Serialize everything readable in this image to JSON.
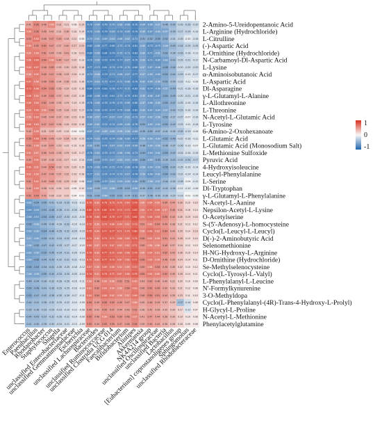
{
  "chart_data": {
    "type": "heatmap",
    "title": "",
    "xlabel": "",
    "ylabel": "",
    "grid": false,
    "legend_position": "right",
    "colorscale": {
      "min": -1,
      "max": 1,
      "ticks": [
        "1",
        "0",
        "-1"
      ],
      "low_color": "#2166ac",
      "mid_color": "#f7f7f7",
      "high_color": "#d7301f"
    },
    "rows": [
      "2-Amino-5-Ureidopentanoic Acid",
      "L-Arginine (Hydrochloride)",
      "L-Citrulline",
      "(-)-Aspartic Acid",
      "L-Ornithine (Hydrochloride)",
      "N-Carbamoyl-Dl-Aspartic Acid",
      "L-Lysine",
      "α-Aminoisobutanoic Acid",
      "L-Aspartic Acid",
      "Dl-Asparagine",
      "γ-L-Glutamyl-L-Alanine",
      "L-Allothreonine",
      "L-Threonine",
      "N-Acetyl-L-Glutamic Acid",
      "L-Tyrosine",
      "6-Amino-2-Oxohexanoate",
      "L-Glutamic Acid",
      "L-Glutamic Acid (Monosodium Salt)",
      "L-Methionine Sulfoxide",
      "Pyruvic Acid",
      "4-Hydroxyisoleucine",
      "Leucyl-Phenylalanine",
      "L-Serine",
      "Dl-Tryptophan",
      "γ-L-Glutamyl-L-Phenylalanine",
      "N-Acetyl-L-Aanine",
      "Nepsilon-Acetyl-L-Lysine",
      "O-Acetylserine",
      "S-(5'-Adenosy)-L-homocysteine",
      "Cyclo(L-Leucyl-L-Leucyl)",
      "D(-)-2-Aminobutyric Acid",
      "Selenomethionine",
      "H-NG-Hydroxy-L-Arginine",
      "D-Ornithine (Hydrochloride)",
      "Se-Methylselenocysteine",
      "Cyclo(L-Tyrosyl-L-Valyl)",
      "L-Phenylalanyl-L-Leucine",
      "N'-Formylkynurenine",
      "3-O-Methyldopa",
      "Cyclo(L-Phenylalanyl-(4R)-Trans-4-Hydroxy-L-Prolyl)",
      "H-Glycyl-L-Proline",
      "N-Acetyl-L-Methionine",
      "Phenylacetylglutamine"
    ],
    "columns": [
      "Enterococcus",
      "Paenibacillus",
      "Rhodanobacter",
      "Staphylococcus",
      "Shigella",
      "unclassified Enterobacteriaceae",
      "unclassified Gemmatimonadaceae",
      "Escherichia",
      "unclassified Lachnospiraceae",
      "Bacteroides",
      "unclassified Ruminococcaceae",
      "unclassified Clostridia UCG 014",
      "Faecalibacterium",
      "Bifidobacterium",
      "Alistipes",
      "Akkermansia",
      "NK4A214 group",
      "unclassified Oscillospiraceae",
      "unclassified Bacteria",
      "Lactobacillus",
      "[Eubacterium] coprostanoligenes group",
      "Sphingomonas",
      "unclassified Rhodobacteraceae"
    ],
    "values": [
      [
        0.41,
        0.55,
        0.46,
        0.56,
        0.31,
        0.21,
        0.08,
        0.19,
        -0.76,
        -0.64,
        -0.76,
        -0.7,
        -0.66,
        -0.68,
        -0.79,
        -0.64,
        -0.66,
        -0.57,
        -0.46,
        -0.42,
        -0.25,
        -0.26,
        -0.2
      ],
      [
        0.6,
        0.55,
        0.45,
        0.41,
        0.31,
        0.36,
        0.18,
        0.14,
        -0.75,
        -0.65,
        -0.79,
        -0.69,
        -0.73,
        -0.69,
        -0.79,
        -0.6,
        -0.67,
        -0.6,
        -0.57,
        -0.39,
        -0.27,
        -0.24,
        -0.16
      ],
      [
        0.53,
        0.63,
        0.46,
        0.47,
        0.43,
        0.34,
        0.21,
        0.05,
        -0.7,
        -0.61,
        -0.69,
        -0.63,
        -0.68,
        -0.62,
        -0.71,
        -0.51,
        -0.52,
        -0.55,
        -0.52,
        -0.31,
        -0.25,
        -0.1,
        -0.16
      ],
      [
        0.59,
        0.52,
        0.54,
        0.47,
        0.37,
        0.4,
        0.27,
        0.24,
        -0.82,
        -0.68,
        -0.77,
        -0.8,
        -0.72,
        -0.73,
        -0.81,
        -0.6,
        -0.73,
        -0.7,
        -0.58,
        -0.45,
        -0.34,
        -0.25,
        -0.25
      ],
      [
        0.6,
        0.6,
        0.51,
        0.44,
        0.36,
        0.41,
        0.18,
        0.21,
        -0.83,
        -0.65,
        -0.84,
        -0.79,
        -0.7,
        -0.71,
        -0.83,
        -0.6,
        -0.71,
        -0.61,
        -0.52,
        -0.38,
        -0.33,
        -0.18,
        -0.13
      ],
      [
        0.66,
        0.69,
        0.54,
        0.56,
        0.44,
        0.37,
        0.22,
        0.13,
        -0.79,
        -0.65,
        -0.79,
        -0.79,
        -0.77,
        -0.67,
        -0.79,
        -0.59,
        -0.71,
        -0.69,
        -0.62,
        -0.43,
        -0.25,
        -0.21,
        -0.17
      ],
      [
        0.64,
        0.67,
        0.48,
        0.5,
        0.33,
        0.3,
        0.25,
        0.18,
        -0.77,
        -0.72,
        -0.81,
        -0.74,
        -0.75,
        -0.7,
        -0.8,
        -0.57,
        -0.67,
        -0.66,
        -0.55,
        -0.46,
        -0.2,
        -0.2,
        -0.2
      ],
      [
        0.56,
        0.62,
        0.49,
        0.47,
        0.38,
        0.33,
        0.24,
        0.13,
        -0.74,
        -0.58,
        -0.79,
        -0.71,
        -0.68,
        -0.67,
        -0.77,
        -0.57,
        -0.63,
        -0.65,
        -0.54,
        -0.44,
        -0.29,
        -0.13,
        -0.17
      ],
      [
        0.67,
        0.59,
        0.48,
        0.5,
        0.34,
        0.36,
        0.2,
        0.16,
        -0.74,
        -0.63,
        -0.73,
        -0.77,
        -0.71,
        -0.68,
        -0.79,
        -0.62,
        -0.65,
        -0.59,
        -0.52,
        -0.39,
        -0.23,
        -0.11,
        -0.08
      ],
      [
        0.73,
        0.66,
        0.54,
        0.53,
        0.35,
        0.29,
        0.2,
        0.16,
        -0.84,
        -0.74,
        -0.83,
        -0.78,
        -0.77,
        -0.72,
        -0.83,
        -0.62,
        -0.74,
        -0.68,
        -0.57,
        -0.49,
        -0.21,
        -0.18,
        -0.16
      ],
      [
        0.68,
        0.61,
        0.49,
        0.53,
        0.37,
        0.3,
        0.22,
        0.16,
        -0.82,
        -0.68,
        -0.78,
        -0.81,
        -0.72,
        -0.75,
        -0.81,
        -0.59,
        -0.66,
        -0.67,
        -0.54,
        -0.49,
        -0.2,
        -0.21,
        -0.18
      ],
      [
        0.66,
        0.63,
        0.52,
        0.45,
        0.35,
        0.29,
        0.19,
        0.15,
        -0.78,
        -0.65,
        -0.78,
        -0.76,
        -0.73,
        -0.69,
        -0.8,
        -0.57,
        -0.66,
        -0.6,
        -0.53,
        -0.47,
        -0.25,
        -0.15,
        -0.18
      ],
      [
        0.63,
        0.66,
        0.56,
        0.5,
        0.35,
        0.33,
        0.23,
        0.17,
        -0.78,
        -0.68,
        -0.79,
        -0.77,
        -0.76,
        -0.69,
        -0.83,
        -0.6,
        -0.67,
        -0.64,
        -0.57,
        -0.43,
        -0.29,
        -0.16,
        -0.16
      ],
      [
        0.56,
        0.63,
        0.45,
        0.44,
        0.37,
        0.3,
        0.23,
        0.18,
        -0.68,
        -0.57,
        -0.75,
        -0.67,
        -0.67,
        -0.61,
        -0.73,
        -0.57,
        -0.62,
        -0.58,
        -0.52,
        -0.37,
        -0.27,
        -0.07,
        -0.16
      ],
      [
        0.65,
        0.63,
        0.47,
        0.47,
        0.36,
        0.26,
        0.24,
        0.18,
        -0.69,
        -0.61,
        -0.74,
        -0.74,
        -0.69,
        -0.65,
        -0.76,
        -0.53,
        -0.62,
        -0.61,
        -0.53,
        -0.43,
        -0.23,
        -0.11,
        -0.16
      ],
      [
        0.43,
        0.59,
        0.31,
        0.32,
        0.22,
        0.19,
        0.04,
        0.03,
        -0.67,
        -0.62,
        -0.59,
        -0.6,
        -0.58,
        -0.56,
        -0.65,
        -0.49,
        -0.51,
        -0.47,
        -0.41,
        -0.36,
        -0.35,
        -0.19,
        -0.08
      ],
      [
        0.55,
        0.65,
        0.48,
        0.45,
        0.29,
        0.34,
        0.18,
        0.15,
        -0.74,
        -0.63,
        -0.75,
        -0.74,
        -0.68,
        -0.69,
        -0.77,
        -0.56,
        -0.6,
        -0.6,
        -0.52,
        -0.46,
        -0.22,
        -0.16,
        -0.11
      ],
      [
        0.52,
        0.58,
        0.39,
        0.47,
        0.29,
        0.22,
        0.15,
        0.16,
        -0.65,
        -0.51,
        -0.74,
        -0.67,
        -0.63,
        -0.64,
        -0.69,
        -0.48,
        -0.6,
        -0.56,
        -0.46,
        -0.37,
        -0.26,
        -0.13,
        -0.07
      ],
      [
        0.61,
        0.57,
        0.46,
        0.43,
        0.36,
        0.29,
        0.2,
        0.17,
        -0.76,
        -0.63,
        -0.75,
        -0.73,
        -0.66,
        -0.66,
        -0.73,
        -0.54,
        -0.64,
        -0.61,
        -0.54,
        -0.44,
        -0.24,
        -0.16,
        -0.15
      ],
      [
        0.49,
        0.61,
        0.39,
        0.38,
        0.33,
        0.27,
        0.13,
        0.14,
        -0.68,
        -0.53,
        -0.7,
        -0.67,
        -0.6,
        -0.61,
        -0.66,
        -0.55,
        -0.6,
        -0.53,
        -0.45,
        -0.43,
        -0.33,
        -0.34,
        -0.27
      ],
      [
        0.66,
        0.61,
        0.44,
        0.54,
        0.33,
        0.29,
        0.2,
        0.15,
        -0.76,
        -0.66,
        -0.76,
        -0.72,
        -0.73,
        -0.68,
        -0.78,
        -0.58,
        -0.64,
        -0.6,
        -0.55,
        -0.43,
        -0.25,
        -0.16,
        -0.14
      ],
      [
        0.62,
        0.6,
        0.47,
        0.45,
        0.37,
        0.32,
        0.19,
        0.16,
        -0.77,
        -0.61,
        -0.74,
        -0.74,
        -0.7,
        -0.67,
        -0.78,
        -0.59,
        -0.68,
        -0.61,
        -0.54,
        -0.43,
        -0.22,
        -0.14,
        -0.14
      ],
      [
        0.51,
        0.61,
        0.43,
        0.45,
        0.32,
        0.29,
        0.18,
        0.08,
        -0.67,
        -0.54,
        -0.7,
        -0.61,
        -0.63,
        -0.59,
        -0.66,
        -0.52,
        -0.56,
        -0.57,
        -0.44,
        -0.34,
        -0.28,
        -0.04,
        -0.12
      ],
      [
        0.43,
        0.59,
        0.38,
        0.31,
        0.24,
        0.23,
        0.06,
        0.1,
        -0.6,
        -0.45,
        -0.57,
        -0.56,
        -0.53,
        -0.51,
        -0.59,
        -0.45,
        -0.51,
        -0.47,
        -0.4,
        -0.36,
        -0.12,
        -0.1,
        -0.08
      ],
      [
        0.52,
        0.54,
        0.42,
        0.28,
        0.22,
        0.22,
        0.04,
        0.01,
        -0.51,
        -0.49,
        -0.56,
        -0.52,
        -0.51,
        -0.44,
        -0.51,
        -0.37,
        -0.46,
        -0.4,
        -0.36,
        -0.29,
        -0.19,
        -0.01,
        -0.05
      ],
      [
        -0.62,
        -0.54,
        -0.5,
        -0.41,
        -0.33,
        -0.33,
        -0.19,
        -0.12,
        0.75,
        0.63,
        0.78,
        0.73,
        0.7,
        0.69,
        0.79,
        0.56,
        0.64,
        0.6,
        0.5,
        0.44,
        0.3,
        0.15,
        0.15
      ],
      [
        -0.69,
        -0.64,
        -0.51,
        -0.48,
        -0.36,
        -0.31,
        -0.25,
        -0.16,
        0.82,
        0.7,
        0.82,
        0.79,
        0.74,
        0.73,
        0.83,
        0.6,
        0.7,
        0.66,
        0.57,
        0.46,
        0.31,
        0.16,
        0.13
      ],
      [
        -0.66,
        -0.67,
        -0.53,
        -0.5,
        -0.37,
        -0.33,
        -0.21,
        -0.16,
        0.78,
        0.68,
        0.82,
        0.76,
        0.77,
        0.71,
        0.82,
        0.61,
        0.68,
        0.65,
        0.55,
        0.43,
        0.26,
        0.19,
        0.16
      ],
      [
        -0.55,
        -0.56,
        -0.45,
        -0.4,
        -0.28,
        -0.33,
        -0.15,
        -0.13,
        0.72,
        0.59,
        0.7,
        0.68,
        0.64,
        0.62,
        0.73,
        0.51,
        0.6,
        0.54,
        0.49,
        0.38,
        0.21,
        0.13,
        0.12
      ],
      [
        -0.63,
        -0.6,
        -0.54,
        -0.46,
        -0.35,
        -0.32,
        -0.24,
        -0.15,
        0.75,
        0.64,
        0.77,
        0.77,
        0.71,
        0.7,
        0.8,
        0.58,
        0.68,
        0.62,
        0.54,
        0.4,
        0.25,
        0.14,
        0.19
      ],
      [
        -0.57,
        -0.6,
        -0.49,
        -0.41,
        -0.34,
        -0.32,
        -0.18,
        -0.14,
        0.74,
        0.6,
        0.74,
        0.71,
        0.66,
        0.65,
        0.74,
        0.55,
        0.62,
        0.59,
        0.51,
        0.41,
        0.28,
        0.13,
        0.15
      ],
      [
        -0.58,
        -0.52,
        -0.47,
        -0.42,
        -0.33,
        -0.27,
        -0.17,
        -0.1,
        0.69,
        0.57,
        0.7,
        0.67,
        0.62,
        0.62,
        0.71,
        0.5,
        0.58,
        0.56,
        0.48,
        0.37,
        0.24,
        0.12,
        0.1
      ],
      [
        -0.62,
        -0.6,
        -0.52,
        -0.45,
        -0.34,
        -0.31,
        -0.2,
        -0.14,
        0.75,
        0.63,
        0.77,
        0.72,
        0.69,
        0.68,
        0.76,
        0.56,
        0.64,
        0.61,
        0.52,
        0.42,
        0.26,
        0.15,
        0.14
      ],
      [
        -0.6,
        -0.55,
        -0.46,
        -0.43,
        -0.32,
        -0.31,
        -0.21,
        -0.13,
        0.72,
        0.63,
        0.77,
        0.73,
        0.67,
        0.66,
        0.77,
        0.55,
        0.63,
        0.59,
        0.48,
        0.39,
        0.24,
        0.14,
        0.11
      ],
      [
        -0.55,
        -0.54,
        -0.44,
        -0.41,
        -0.3,
        -0.26,
        -0.18,
        -0.12,
        0.67,
        0.58,
        0.69,
        0.65,
        0.62,
        0.59,
        0.7,
        0.5,
        0.58,
        0.53,
        0.45,
        0.36,
        0.22,
        0.1,
        0.12
      ],
      [
        -0.58,
        -0.58,
        -0.5,
        -0.43,
        -0.34,
        -0.3,
        -0.2,
        -0.14,
        0.74,
        0.61,
        0.75,
        0.71,
        0.67,
        0.66,
        0.75,
        0.54,
        0.63,
        0.6,
        0.52,
        0.4,
        0.25,
        0.14,
        0.11
      ],
      [
        -0.46,
        -0.44,
        -0.39,
        -0.33,
        -0.28,
        -0.26,
        -0.15,
        -0.11,
        0.58,
        0.48,
        0.59,
        0.56,
        0.52,
        0.51,
        0.6,
        0.43,
        0.5,
        0.46,
        0.4,
        0.31,
        0.2,
        0.1,
        0.09
      ],
      [
        -0.5,
        -0.48,
        -0.41,
        -0.36,
        -0.29,
        -0.25,
        -0.16,
        -0.1,
        0.61,
        0.52,
        0.63,
        0.6,
        0.56,
        0.54,
        0.63,
        0.46,
        0.52,
        0.49,
        0.42,
        0.33,
        0.21,
        0.12,
        0.08
      ],
      [
        -0.53,
        -0.47,
        -0.42,
        -0.38,
        -0.3,
        -0.26,
        -0.17,
        -0.11,
        0.64,
        0.54,
        0.66,
        0.62,
        0.58,
        0.57,
        0.66,
        0.48,
        0.55,
        0.51,
        0.44,
        0.35,
        0.23,
        0.11,
        0.1
      ],
      [
        -0.44,
        -0.41,
        -0.36,
        -0.32,
        -0.25,
        -0.22,
        -0.14,
        -0.09,
        0.54,
        0.45,
        0.55,
        0.52,
        0.49,
        0.47,
        0.56,
        0.4,
        0.46,
        0.43,
        0.37,
        0.29,
        -0.37,
        -0.16,
        0.08
      ],
      [
        -0.39,
        -0.38,
        -0.33,
        -0.29,
        -0.23,
        -0.19,
        -0.12,
        -0.08,
        0.49,
        0.41,
        0.5,
        0.47,
        0.44,
        0.43,
        0.51,
        0.36,
        0.42,
        0.39,
        0.33,
        0.26,
        0.17,
        -0.12,
        0.07
      ],
      [
        -0.44,
        -0.43,
        -0.37,
        -0.32,
        -0.26,
        -0.22,
        -0.14,
        -0.09,
        0.55,
        0.46,
        0.56,
        0.53,
        0.5,
        0.48,
        0.57,
        0.41,
        0.47,
        0.44,
        0.38,
        0.3,
        0.19,
        0.1,
        0.08
      ],
      [
        -0.41,
        -0.4,
        -0.35,
        -0.3,
        -0.24,
        -0.21,
        -0.13,
        -0.09,
        0.52,
        0.44,
        0.53,
        0.5,
        0.47,
        0.46,
        0.54,
        0.39,
        0.45,
        0.42,
        0.36,
        0.28,
        0.18,
        0.09,
        0.08
      ]
    ]
  }
}
